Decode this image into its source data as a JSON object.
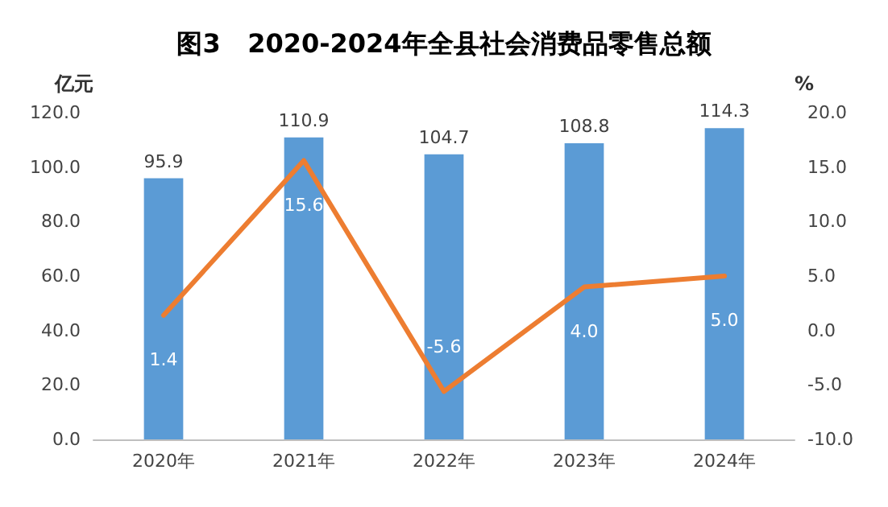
{
  "chart_data": {
    "type": "bar",
    "title": "图3   2020-2024年全县社会消费品零售总额",
    "ylabel": "亿元",
    "y2label": "%",
    "categories": [
      "2020年",
      "2021年",
      "2022年",
      "2023年",
      "2024年"
    ],
    "series": [
      {
        "color": "#5b9bd5",
        "values": [
          95.9,
          110.9,
          104.7,
          108.8,
          114.3
        ],
        "data_labels": true
      },
      {
        "type": "line",
        "axis": "y2",
        "color": "#ed7d31",
        "values": [
          1.4,
          15.6,
          -5.6,
          4.0,
          5.0
        ],
        "value_labels": [
          "1.4",
          "15.6",
          "-5.6",
          "4.0",
          "5.0"
        ],
        "marker": "none",
        "line_style": "solid"
      }
    ],
    "ylim": [
      0,
      120
    ],
    "yticks": [
      {
        "value": 0,
        "label": "0.0"
      },
      {
        "value": 20,
        "label": "20.0"
      },
      {
        "value": 40,
        "label": "40.0"
      },
      {
        "value": 60,
        "label": "60.0"
      },
      {
        "value": 80,
        "label": "80.0"
      },
      {
        "value": 100,
        "label": "100.0"
      },
      {
        "value": 120,
        "label": "120.0"
      }
    ],
    "y2lim": [
      -10,
      20
    ],
    "y2ticks": [
      {
        "value": -10,
        "label": "-10.0"
      },
      {
        "value": -5,
        "label": "-5.0"
      },
      {
        "value": 0,
        "label": "0.0"
      },
      {
        "value": 5,
        "label": "5.0"
      },
      {
        "value": 10,
        "label": "10.0"
      },
      {
        "value": 15,
        "label": "15.0"
      },
      {
        "value": 20,
        "label": "20.0"
      }
    ],
    "grid": false
  }
}
